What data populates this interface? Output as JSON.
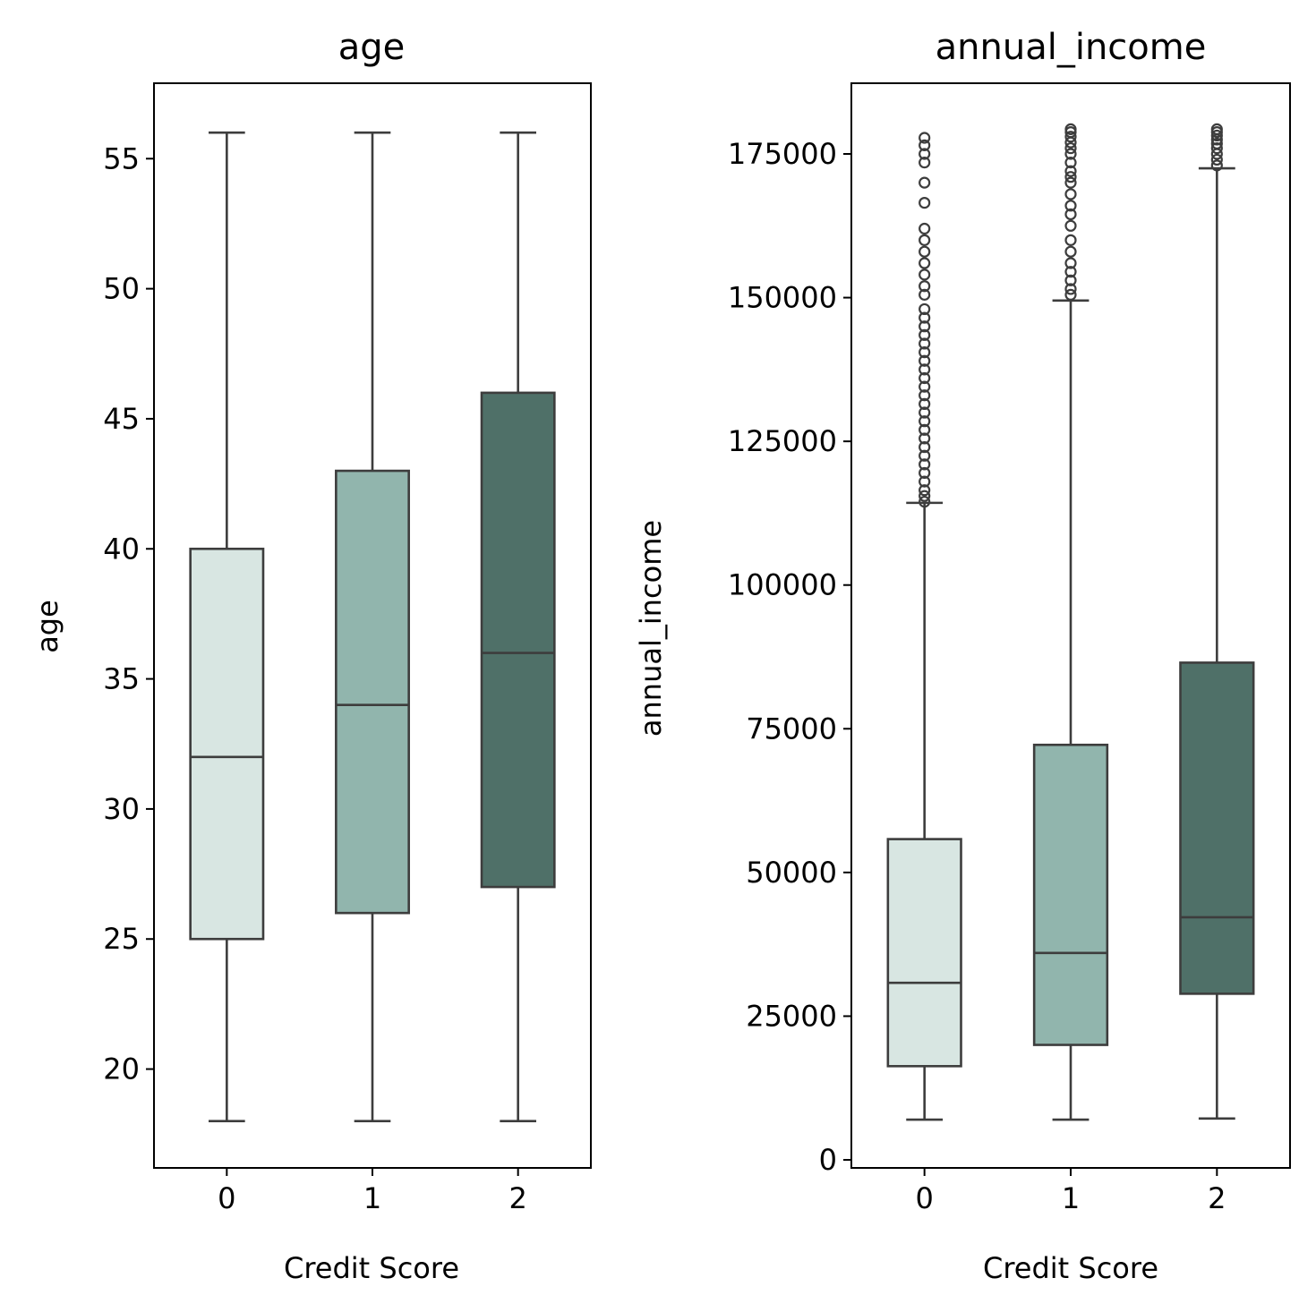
{
  "chart_data": [
    {
      "type": "box",
      "title": "age",
      "xlabel": "Credit Score",
      "ylabel": "age",
      "categories": [
        "0",
        "1",
        "2"
      ],
      "ylim": [
        16.2,
        57.9
      ],
      "yticks": [
        20,
        25,
        30,
        35,
        40,
        45,
        50,
        55
      ],
      "ytick_labels": [
        "20",
        "25",
        "30",
        "35",
        "40",
        "45",
        "50",
        "55"
      ],
      "boxes": [
        {
          "category": "0",
          "whisker_low": 18,
          "q1": 25,
          "median": 32,
          "q3": 40,
          "whisker_high": 56,
          "outliers": []
        },
        {
          "category": "1",
          "whisker_low": 18,
          "q1": 26,
          "median": 34,
          "q3": 43,
          "whisker_high": 56,
          "outliers": []
        },
        {
          "category": "2",
          "whisker_low": 18,
          "q1": 27,
          "median": 36,
          "q3": 46,
          "whisker_high": 56,
          "outliers": []
        }
      ]
    },
    {
      "type": "box",
      "title": "annual_income",
      "xlabel": "Credit Score",
      "ylabel": "annual_income",
      "categories": [
        "0",
        "1",
        "2"
      ],
      "ylim": [
        -1400,
        187300
      ],
      "yticks": [
        0,
        25000,
        50000,
        75000,
        100000,
        125000,
        150000,
        175000
      ],
      "ytick_labels": [
        "0",
        "25000",
        "50000",
        "75000",
        "100000",
        "125000",
        "150000",
        "175000"
      ],
      "boxes": [
        {
          "category": "0",
          "whisker_low": 7000,
          "q1": 16300,
          "median": 30800,
          "q3": 55800,
          "whisker_high": 114300,
          "outliers": [
            114500,
            115500,
            116500,
            118000,
            119500,
            121000,
            122500,
            124000,
            125500,
            127000,
            128500,
            130000,
            131500,
            133000,
            134500,
            136000,
            137500,
            139000,
            140500,
            142000,
            143500,
            145000,
            146500,
            148000,
            150500,
            152000,
            154000,
            156000,
            158000,
            160000,
            162000,
            166500,
            170000,
            173500,
            175000,
            176500,
            177800
          ]
        },
        {
          "category": "1",
          "whisker_low": 7000,
          "q1": 20000,
          "median": 36000,
          "q3": 72200,
          "whisker_high": 149500,
          "outliers": [
            150500,
            151500,
            153000,
            154500,
            156000,
            158000,
            160000,
            162500,
            164500,
            166000,
            168000,
            170000,
            171000,
            172000,
            173500,
            175000,
            176000,
            177000,
            178000,
            178800,
            179300
          ]
        },
        {
          "category": "2",
          "whisker_low": 7200,
          "q1": 28900,
          "median": 42200,
          "q3": 86500,
          "whisker_high": 172500,
          "outliers": [
            173000,
            174000,
            175000,
            176000,
            176800,
            177500,
            178200,
            178800,
            179300
          ]
        }
      ]
    }
  ],
  "colors": {
    "box_fill": [
      "#d8e6e2",
      "#91b5ad",
      "#4f7068"
    ],
    "line": "#3d3d3d",
    "axes": "#000000"
  }
}
